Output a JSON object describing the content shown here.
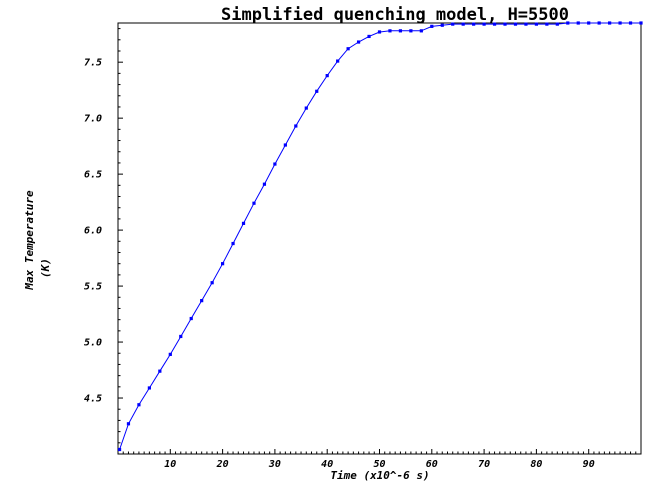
{
  "chart_data": {
    "type": "line",
    "title": "Simplified quenching model, H=5500",
    "xlabel": "Time (x10^-6 s)",
    "ylabel_lines": [
      "Max Temperature",
      "(K)"
    ],
    "xlim": [
      0,
      100
    ],
    "ylim": [
      4.0,
      7.85
    ],
    "x_ticks": [
      10,
      20,
      30,
      40,
      50,
      60,
      70,
      80,
      90
    ],
    "y_ticks": [
      4.5,
      5.0,
      5.5,
      6.0,
      6.5,
      7.0,
      7.5
    ],
    "grid": false,
    "line_color": "#0000ff",
    "series": [
      {
        "marker": "square",
        "x": [
          0.3,
          2,
          4,
          6,
          8,
          10,
          12,
          14,
          16,
          18,
          20,
          22,
          24,
          26,
          28,
          30,
          32,
          34,
          36,
          38,
          40,
          42,
          44,
          46,
          48,
          50,
          52,
          54,
          56,
          58,
          60,
          62,
          64,
          66,
          68,
          70,
          72,
          74,
          76,
          78,
          80,
          82,
          84,
          86,
          88,
          90,
          92,
          94,
          96,
          98,
          100
        ],
        "y": [
          4.04,
          4.27,
          4.44,
          4.59,
          4.74,
          4.89,
          5.05,
          5.21,
          5.37,
          5.53,
          5.7,
          5.88,
          6.06,
          6.24,
          6.41,
          6.59,
          6.76,
          6.93,
          7.09,
          7.24,
          7.38,
          7.51,
          7.62,
          7.68,
          7.73,
          7.77,
          7.78,
          7.78,
          7.78,
          7.78,
          7.82,
          7.83,
          7.84,
          7.84,
          7.84,
          7.84,
          7.84,
          7.84,
          7.84,
          7.84,
          7.84,
          7.84,
          7.84,
          7.85,
          7.85,
          7.85,
          7.85,
          7.85,
          7.85,
          7.85,
          7.85
        ]
      }
    ]
  }
}
